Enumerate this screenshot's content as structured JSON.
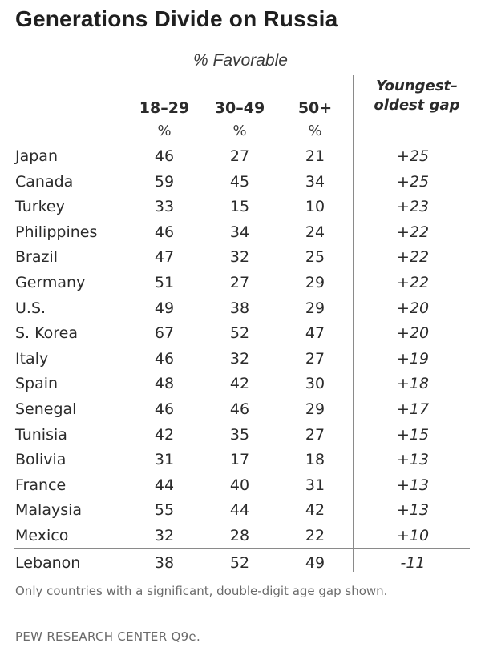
{
  "title": "Generations Divide on Russia",
  "subtitle": "% Favorable",
  "note": "Only countries with a significant, double-digit age gap shown.",
  "source": "PEW RESEARCH CENTER Q9e.",
  "chart_data": {
    "type": "table",
    "columns": [
      {
        "label": "18–29",
        "unit": "%"
      },
      {
        "label": "30–49",
        "unit": "%"
      },
      {
        "label": "50+",
        "unit": "%"
      }
    ],
    "gap_header": [
      "Youngest–",
      "oldest gap"
    ],
    "rows": [
      {
        "country": "Japan",
        "values": [
          "46",
          "27",
          "21"
        ],
        "gap": "+25"
      },
      {
        "country": "Canada",
        "values": [
          "59",
          "45",
          "34"
        ],
        "gap": "+25"
      },
      {
        "country": "Turkey",
        "values": [
          "33",
          "15",
          "10"
        ],
        "gap": "+23"
      },
      {
        "country": "Philippines",
        "values": [
          "46",
          "34",
          "24"
        ],
        "gap": "+22"
      },
      {
        "country": "Brazil",
        "values": [
          "47",
          "32",
          "25"
        ],
        "gap": "+22"
      },
      {
        "country": "Germany",
        "values": [
          "51",
          "27",
          "29"
        ],
        "gap": "+22"
      },
      {
        "country": "U.S.",
        "values": [
          "49",
          "38",
          "29"
        ],
        "gap": "+20"
      },
      {
        "country": "S. Korea",
        "values": [
          "67",
          "52",
          "47"
        ],
        "gap": "+20"
      },
      {
        "country": "Italy",
        "values": [
          "46",
          "32",
          "27"
        ],
        "gap": "+19"
      },
      {
        "country": "Spain",
        "values": [
          "48",
          "42",
          "30"
        ],
        "gap": "+18"
      },
      {
        "country": "Senegal",
        "values": [
          "46",
          "46",
          "29"
        ],
        "gap": "+17"
      },
      {
        "country": "Tunisia",
        "values": [
          "42",
          "35",
          "27"
        ],
        "gap": "+15"
      },
      {
        "country": "Bolivia",
        "values": [
          "31",
          "17",
          "18"
        ],
        "gap": "+13"
      },
      {
        "country": "France",
        "values": [
          "44",
          "40",
          "31"
        ],
        "gap": "+13"
      },
      {
        "country": "Malaysia",
        "values": [
          "55",
          "44",
          "42"
        ],
        "gap": "+13"
      },
      {
        "country": "Mexico",
        "values": [
          "32",
          "28",
          "22"
        ],
        "gap": "+10"
      },
      {
        "country": "Lebanon",
        "values": [
          "38",
          "52",
          "49"
        ],
        "gap": "-11"
      }
    ]
  }
}
